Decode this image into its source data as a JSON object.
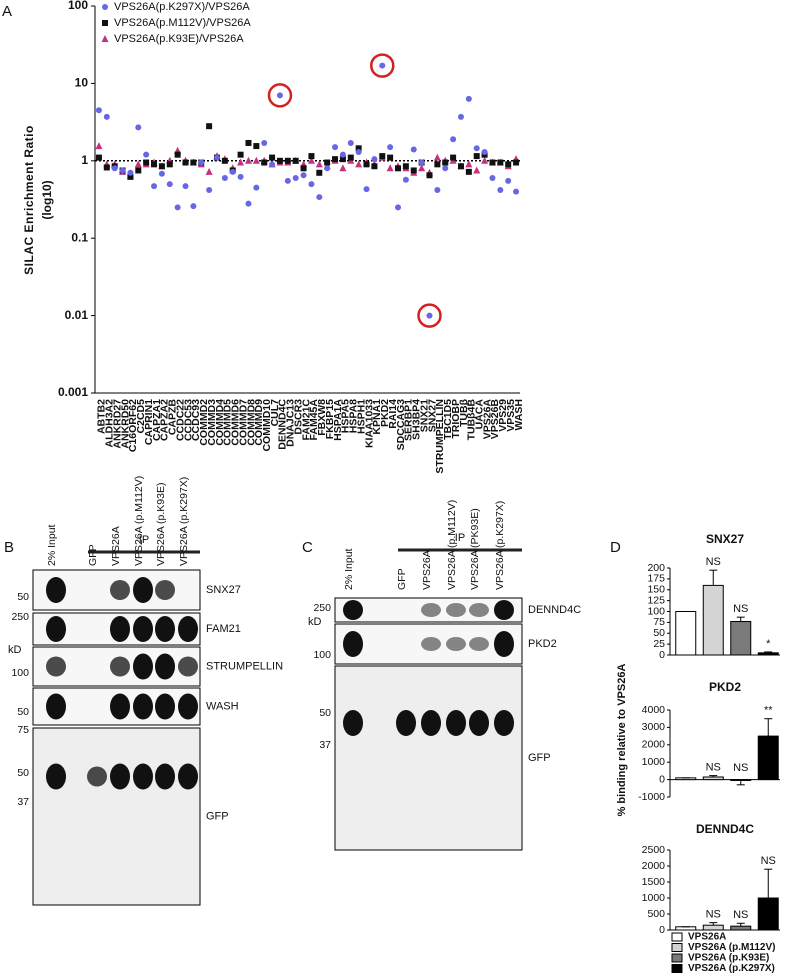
{
  "chart_data": [
    {
      "type": "scatter",
      "panel_label": "A",
      "ylabel": "SILAC Enrichment Ratio",
      "ylabel_unit": "(log10)",
      "log_scale": true,
      "ylim": [
        0.001,
        100
      ],
      "yticks": [
        0.001,
        0.01,
        0.1,
        1,
        10,
        100
      ],
      "reference_line": 1,
      "legend": "upper left",
      "highlight": [
        "DENND4C",
        "PKD2",
        "SNX27"
      ],
      "highlight_color": "#d42020",
      "categories": [
        "ABTB2",
        "ALDH3A2",
        "ANKRD27",
        "ANKRD50",
        "C16ORF62",
        "C2CD5",
        "CAPRIN1",
        "CAPZA1",
        "CAPZA2",
        "CAPZB",
        "CCDC22",
        "CCDC53",
        "CCDC93",
        "COMMD2",
        "COMMD3",
        "COMMD4",
        "COMMD5",
        "COMMD6",
        "COMMD7",
        "COMMD8",
        "COMMD9",
        "COMMD10",
        "CUL7",
        "DENND4C",
        "DNAJC13",
        "DSCR3",
        "FAM21C",
        "FAM45A",
        "FBXW8",
        "FKBP15",
        "HSPA1A",
        "HSPA5",
        "HSPA8",
        "HSPH1",
        "KIAA1033",
        "KPNA1",
        "PKD2",
        "RAI14",
        "SDCCAG3",
        "SERBP1",
        "SH3BP4",
        "SNX21",
        "SNX27",
        "STRUMPELLIN",
        "TBC1D5",
        "TRIOBP",
        "TUBβ",
        "TUBβ4B",
        "UACA",
        "VPS26A",
        "VPS26B",
        "VPS29",
        "VPS35",
        "WASH"
      ],
      "series": [
        {
          "name": "VPS26A(p.K297X)/VPS26A",
          "color": "#6767e6",
          "marker": "circle",
          "values": [
            4.5,
            3.7,
            0.8,
            0.75,
            0.7,
            2.7,
            1.2,
            0.47,
            0.68,
            0.5,
            0.25,
            0.47,
            0.26,
            0.95,
            0.42,
            1.1,
            0.6,
            0.72,
            0.62,
            0.28,
            0.45,
            1.7,
            0.9,
            7,
            0.55,
            0.6,
            0.65,
            0.5,
            0.34,
            0.8,
            1.5,
            1.2,
            1.7,
            1.3,
            0.43,
            1.05,
            17,
            1.5,
            0.25,
            0.57,
            1.4,
            0.95,
            0.01,
            0.42,
            0.8,
            1.9,
            3.7,
            6.3,
            1.45,
            1.3,
            0.6,
            0.42,
            0.55,
            0.4
          ]
        },
        {
          "name": "VPS26A(p.M112V)/VPS26A",
          "color": "#111111",
          "marker": "square",
          "values": [
            1.1,
            0.82,
            0.85,
            0.75,
            0.62,
            0.75,
            0.95,
            0.9,
            0.85,
            0.9,
            1.2,
            0.95,
            0.95,
            0.95,
            2.8,
            1.1,
            1.0,
            0.75,
            1.2,
            1.7,
            1.55,
            0.95,
            1.1,
            1.0,
            1.0,
            1.0,
            0.8,
            1.15,
            0.7,
            0.95,
            1.05,
            1.05,
            1.1,
            1.45,
            0.9,
            0.85,
            1.15,
            1.1,
            0.8,
            0.85,
            0.75,
            0.95,
            0.65,
            0.9,
            0.95,
            1.1,
            0.85,
            0.72,
            1.15,
            1.2,
            0.95,
            0.95,
            0.9,
            0.95
          ]
        },
        {
          "name": "VPS26A(p.K93E)/VPS26A",
          "color": "#c4317f",
          "marker": "triangle",
          "values": [
            1.55,
            0.9,
            0.9,
            0.72,
            0.65,
            0.9,
            0.9,
            0.95,
            0.85,
            1.0,
            1.35,
            1.0,
            0.95,
            0.9,
            0.72,
            1.15,
            1.05,
            0.8,
            0.95,
            1.0,
            1.0,
            1.0,
            0.9,
            0.95,
            0.95,
            1.0,
            0.9,
            1.0,
            0.9,
            0.85,
            1.0,
            0.8,
            1.0,
            0.9,
            0.95,
            0.9,
            1.1,
            0.8,
            0.85,
            0.8,
            0.7,
            0.8,
            0.7,
            1.1,
            1.0,
            1.0,
            0.85,
            0.9,
            0.75,
            1.0,
            0.95,
            0.95,
            0.85,
            1.05
          ]
        }
      ]
    },
    {
      "type": "bar",
      "title": "SNX27",
      "ylim": [
        0,
        200
      ],
      "yticks": [
        0,
        25,
        50,
        75,
        100,
        125,
        150,
        175,
        200
      ],
      "values": [
        100,
        160,
        77,
        5
      ],
      "errors": [
        0,
        35,
        10,
        2
      ],
      "annotations": [
        null,
        "NS",
        "NS",
        "*"
      ]
    },
    {
      "type": "bar",
      "title": "PKD2",
      "ylim": [
        -1000,
        4000
      ],
      "yticks": [
        -1000,
        0,
        1000,
        2000,
        3000,
        4000
      ],
      "values": [
        100,
        150,
        -50,
        2500
      ],
      "errors": [
        0,
        80,
        250,
        1000
      ],
      "annotations": [
        null,
        "NS",
        "NS",
        "**"
      ]
    },
    {
      "type": "bar",
      "title": "DENND4C",
      "ylim": [
        0,
        2500
      ],
      "yticks": [
        0,
        500,
        1000,
        1500,
        2000,
        2500
      ],
      "values": [
        100,
        150,
        120,
        1000
      ],
      "errors": [
        0,
        80,
        90,
        900
      ],
      "annotations": [
        null,
        "NS",
        "NS",
        "NS"
      ]
    }
  ],
  "panel_D": {
    "panel_label": "D",
    "ylabel": "% binding relative  to VPS26A",
    "legend": {
      "names": [
        "VPS26A",
        "VPS26A (p.M112V)",
        "VPS26A (p.K93E)",
        "VPS26A (p.K297X)"
      ],
      "colors": [
        "#ffffff",
        "#d4d4d4",
        "#7a7a7a",
        "#000000"
      ]
    }
  },
  "blot_B": {
    "panel_label": "B",
    "ip_label": "IP",
    "kd_label": "kD",
    "lanes": [
      "2% Input",
      "GFP",
      "VPS26A",
      "VPS26A (p.M112V)",
      "VPS26A (p.K93E)",
      "VPS26A (p.K297X)"
    ],
    "markers": [
      50,
      250,
      100,
      50,
      75,
      50,
      37
    ],
    "bands": [
      "SNX27",
      "FAM21",
      "STRUMPELLIN",
      "WASH",
      "GFP"
    ]
  },
  "blot_C": {
    "panel_label": "C",
    "ip_label": "IP",
    "kd_label": "kD",
    "lanes": [
      "2% Input",
      "GFP",
      "VPS26A",
      "VPS26A (p.M112V)",
      "VPS26A (PK93E)",
      "VPS26A (p.K297X)"
    ],
    "markers": [
      250,
      100,
      50,
      37
    ],
    "bands": [
      "DENND4C",
      "PKD2",
      "GFP"
    ]
  }
}
